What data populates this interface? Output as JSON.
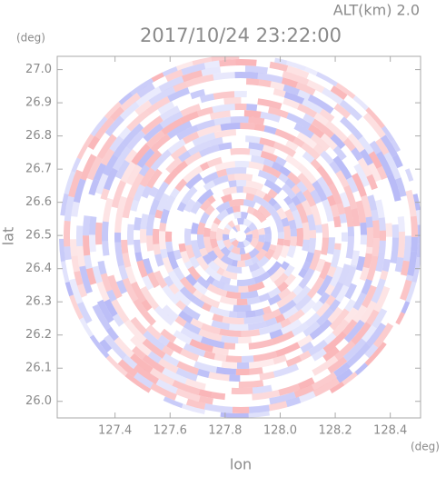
{
  "chart_data": {
    "type": "ppi",
    "title": "2017/10/24 23:22:00",
    "altitude_label": "ALT(km) 2.0",
    "x_label": "lon",
    "y_label": "lat",
    "x_unit": "(deg)",
    "y_unit": "(deg)",
    "xlim": [
      127.19,
      128.51
    ],
    "ylim": [
      25.95,
      27.04
    ],
    "xticks": [
      127.4,
      127.6,
      127.8,
      {
        "value": 128.0,
        "label": "128.0"
      },
      128.2,
      128.4
    ],
    "yticks": [
      {
        "value": 26.0,
        "label": "26.0"
      },
      26.1,
      26.2,
      26.3,
      26.4,
      26.5,
      26.6,
      26.7,
      26.8,
      26.9,
      {
        "value": 27.0,
        "label": "27.0"
      }
    ]
  }
}
